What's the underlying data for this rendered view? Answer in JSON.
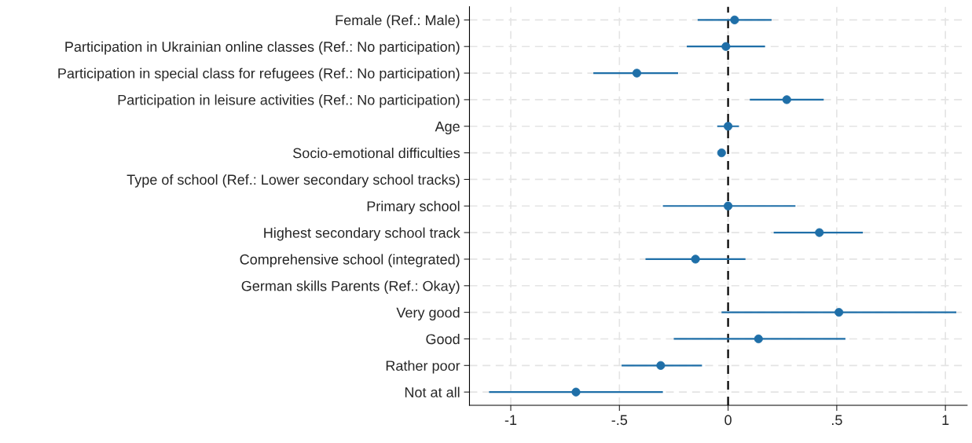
{
  "chart_data": {
    "type": "scatter",
    "orientation": "horizontal",
    "categories": [
      "Female (Ref.: Male)",
      "Participation in Ukrainian online classes (Ref.: No participation)",
      "Participation in special class for refugees (Ref.: No participation)",
      "Participation in leisure activities (Ref.: No participation)",
      "Age",
      "Socio-emotional difficulties",
      "Type of school (Ref.: Lower secondary school tracks)",
      "Primary school",
      "Highest secondary school track",
      "Comprehensive school (integrated)",
      "German skills Parents (Ref.: Okay)",
      "Very good",
      "Good",
      "Rather poor",
      "Not at all"
    ],
    "color": "#1f6fa8",
    "values": [
      0.03,
      -0.01,
      -0.42,
      0.27,
      0.0,
      -0.03,
      null,
      0.0,
      0.42,
      -0.15,
      null,
      0.51,
      0.14,
      -0.31,
      -0.7
    ],
    "errors": [
      [
        -0.14,
        0.2
      ],
      [
        -0.19,
        0.17
      ],
      [
        -0.62,
        -0.23
      ],
      [
        0.1,
        0.44
      ],
      [
        -0.05,
        0.05
      ],
      [
        -0.04,
        -0.02
      ],
      null,
      [
        -0.3,
        0.31
      ],
      [
        0.21,
        0.62
      ],
      [
        -0.38,
        0.08
      ],
      null,
      [
        -0.03,
        1.05
      ],
      [
        -0.25,
        0.54
      ],
      [
        -0.49,
        -0.12
      ],
      [
        -1.1,
        -0.3
      ]
    ],
    "xlim": [
      -1.19,
      1.1
    ],
    "xticks": [
      {
        "value": -1,
        "label": "-1"
      },
      {
        "value": -0.5,
        "label": "-.5"
      },
      0,
      {
        "value": 0.5,
        "label": ".5"
      },
      1
    ],
    "ref_lines": [
      {
        "axis": "x",
        "value": 0,
        "color": "#000000",
        "line_style": "dashed"
      }
    ],
    "grid": true,
    "marker": "circle"
  }
}
